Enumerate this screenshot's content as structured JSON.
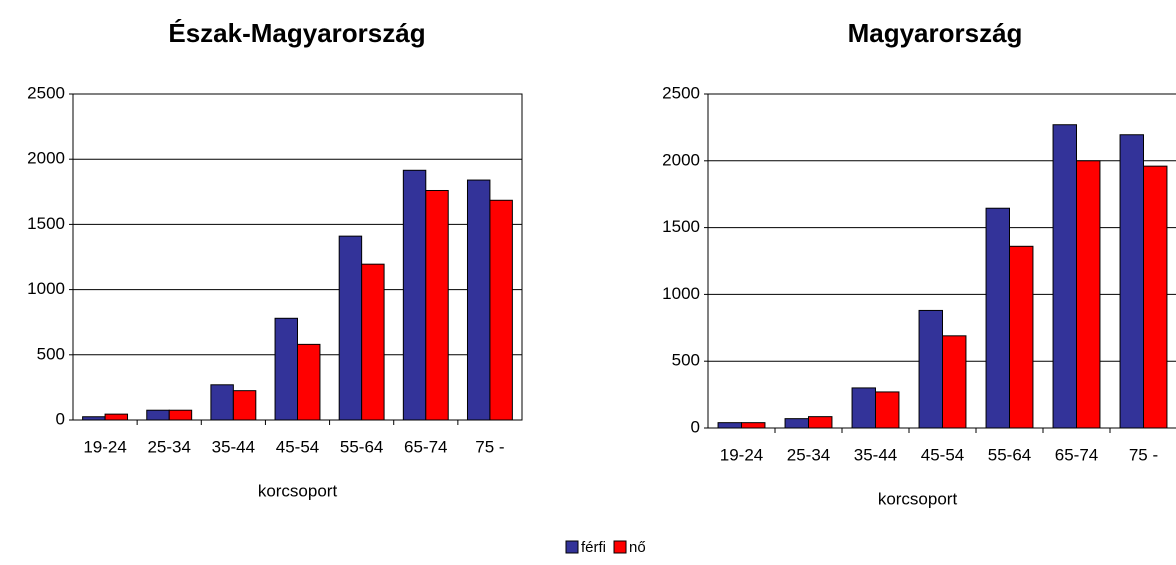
{
  "chart_data": [
    {
      "type": "bar",
      "title": "Észak-Magyarország",
      "x_label": "korcsoport",
      "categories": [
        "19-24",
        "25-34",
        "35-44",
        "45-54",
        "55-64",
        "65-74",
        "75 -"
      ],
      "series": [
        {
          "name": "férfi",
          "color": "#333399",
          "values": [
            25,
            75,
            270,
            780,
            1410,
            1915,
            1840
          ]
        },
        {
          "name": "nő",
          "color": "#ff0000",
          "values": [
            45,
            75,
            225,
            580,
            1195,
            1760,
            1685
          ]
        }
      ],
      "ylim": [
        0,
        2500
      ],
      "yticks": [
        0,
        500,
        1000,
        1500,
        2000,
        2500
      ],
      "grid": true
    },
    {
      "type": "bar",
      "title": "Magyarország",
      "x_label": "korcsoport",
      "categories": [
        "19-24",
        "25-34",
        "35-44",
        "45-54",
        "55-64",
        "65-74",
        "75 -"
      ],
      "series": [
        {
          "name": "férfi",
          "color": "#333399",
          "values": [
            40,
            70,
            300,
            880,
            1645,
            2270,
            2195
          ]
        },
        {
          "name": "nő",
          "color": "#ff0000",
          "values": [
            40,
            85,
            270,
            690,
            1360,
            2000,
            1960
          ]
        }
      ],
      "ylim": [
        0,
        2500
      ],
      "yticks": [
        0,
        500,
        1000,
        1500,
        2000,
        2500
      ],
      "grid": true
    }
  ]
}
